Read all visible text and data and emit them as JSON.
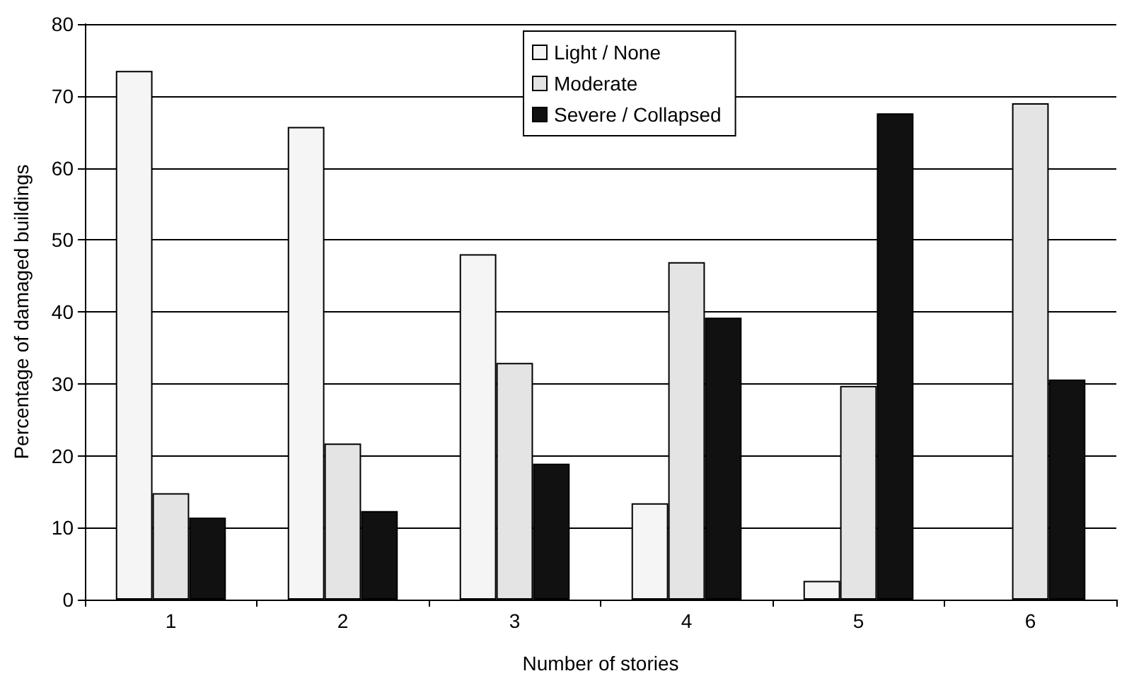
{
  "chart_data": {
    "type": "bar",
    "xlabel": "Number of stories",
    "ylabel": "Percentage of damaged buildings",
    "categories": [
      "1",
      "2",
      "3",
      "4",
      "5",
      "6"
    ],
    "series": [
      {
        "name": "Light / None",
        "color": "#f5f5f5",
        "values": [
          73.5,
          65.7,
          48.0,
          13.4,
          2.6,
          0
        ]
      },
      {
        "name": "Moderate",
        "color": "#e4e4e4",
        "values": [
          14.8,
          21.7,
          32.9,
          46.9,
          29.7,
          69.0
        ]
      },
      {
        "name": "Severe / Collapsed",
        "color": "#111111",
        "values": [
          11.4,
          12.3,
          18.9,
          39.2,
          67.6,
          30.6
        ]
      }
    ],
    "ylim": [
      0,
      80
    ],
    "yticks": [
      0,
      10,
      20,
      30,
      40,
      50,
      60,
      70,
      80
    ],
    "grid": "y",
    "legend": "top"
  }
}
